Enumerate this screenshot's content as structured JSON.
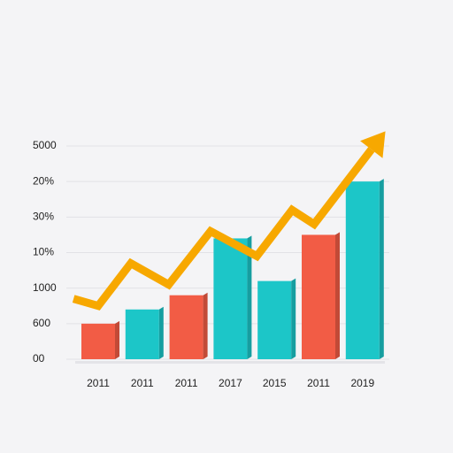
{
  "chart_data": {
    "type": "bar",
    "categories": [
      "2011",
      "2011",
      "2011",
      "2017",
      "2015",
      "2011",
      "2019"
    ],
    "values": [
      1.0,
      1.4,
      1.8,
      3.4,
      2.2,
      3.5,
      5.0
    ],
    "colors": [
      "#f25c45",
      "#1cc6c8",
      "#f25c45",
      "#1cc6c8",
      "#1cc6c8",
      "#f25c45",
      "#1cc6c8"
    ],
    "ylim": [
      0,
      6
    ],
    "yticks": [
      {
        "value": 0,
        "label": "00"
      },
      {
        "value": 1,
        "label": "600"
      },
      {
        "value": 2,
        "label": "1000"
      },
      {
        "value": 3,
        "label": "10%"
      },
      {
        "value": 4,
        "label": "30%"
      },
      {
        "value": 5,
        "label": "20%"
      },
      {
        "value": 6,
        "label": "5000"
      }
    ],
    "grid": true,
    "trend": {
      "color": "#f7a800",
      "x": [
        -0.56,
        0,
        0.74,
        1.6,
        2.55,
        3.6,
        4.4,
        4.9,
        6.2
      ],
      "values": [
        1.7,
        1.5,
        2.7,
        2.1,
        3.6,
        2.9,
        4.2,
        3.8,
        5.9
      ]
    }
  }
}
